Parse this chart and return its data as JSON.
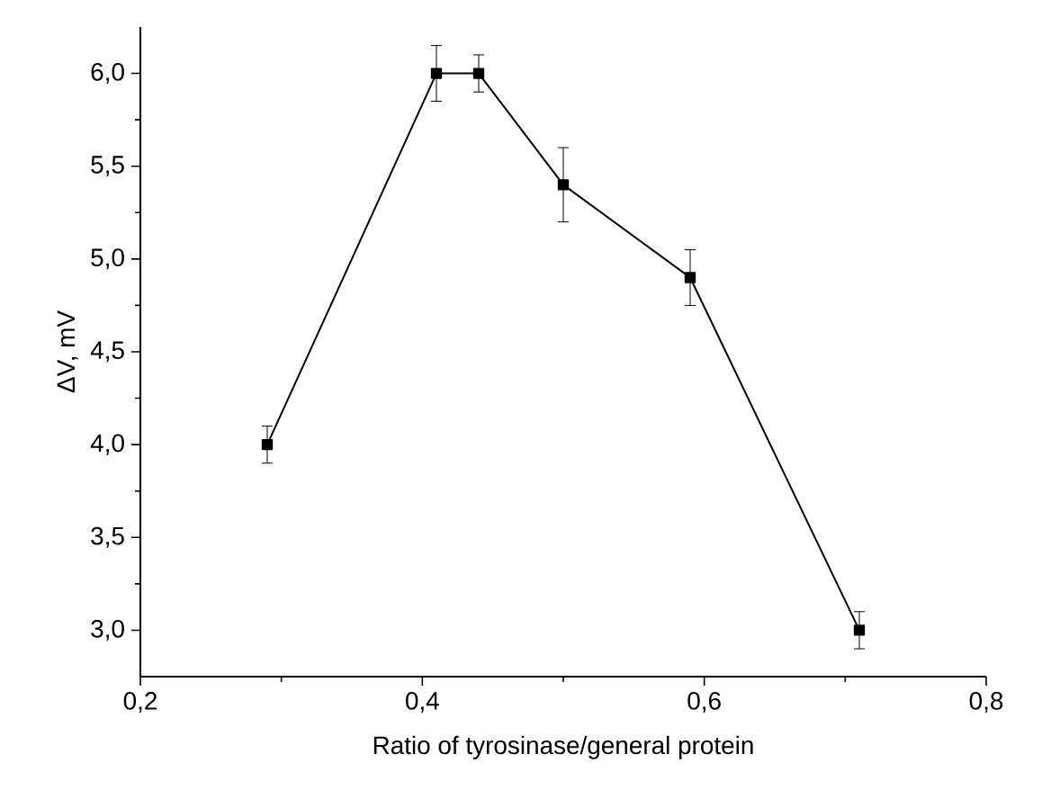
{
  "chart_data": {
    "type": "line",
    "xlabel": "Ratio of tyrosinase/general protein",
    "ylabel": "ΔV, mV",
    "x": [
      0.29,
      0.41,
      0.44,
      0.5,
      0.59,
      0.71
    ],
    "series": [
      {
        "color": "#000000",
        "values": [
          4.0,
          6.0,
          6.0,
          5.4,
          4.9,
          3.0
        ],
        "errors": [
          0.1,
          0.15,
          0.1,
          0.2,
          0.15,
          0.1
        ]
      }
    ],
    "xlim": [
      0.2,
      0.8
    ],
    "ylim": [
      2.75,
      6.25
    ],
    "xticks": [
      {
        "value": 0.2,
        "label": "0,2"
      },
      {
        "value": 0.4,
        "label": "0,4"
      },
      {
        "value": 0.6,
        "label": "0,6"
      },
      {
        "value": 0.8,
        "label": "0,8"
      }
    ],
    "yticks": [
      {
        "value": 3.0,
        "label": "3,0"
      },
      {
        "value": 3.5,
        "label": "3,5"
      },
      {
        "value": 4.0,
        "label": "4,0"
      },
      {
        "value": 4.5,
        "label": "4,5"
      },
      {
        "value": 5.0,
        "label": "5,0"
      },
      {
        "value": 5.5,
        "label": "5,5"
      },
      {
        "value": 6.0,
        "label": "6,0"
      }
    ],
    "marker": "square",
    "line_style": "solid"
  }
}
